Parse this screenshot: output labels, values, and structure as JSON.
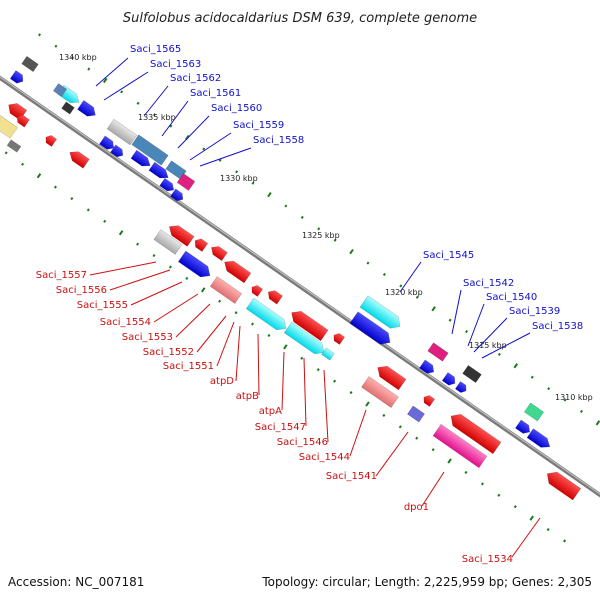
{
  "title": "Sulfolobus acidocaldarius DSM 639, complete genome",
  "footer": {
    "accession": "Accession: NC_007181",
    "summary": "Topology: circular; Length: 2,225,959 bp; Genes: 2,305"
  },
  "colors": {
    "forward_label": "#1010cc",
    "reverse_label": "#cc1010",
    "backbone": "#808080",
    "tick": "#1a7a1a"
  },
  "ticks": [
    "1340 kbp",
    "1335 kbp",
    "1330 kbp",
    "1325 kbp",
    "1320 kbp",
    "1315 kbp",
    "1310 kbp"
  ],
  "forward_labels": [
    "Saci_1565",
    "Saci_1563",
    "Saci_1562",
    "Saci_1561",
    "Saci_1560",
    "Saci_1559",
    "Saci_1558",
    "Saci_1545",
    "Saci_1542",
    "Saci_1540",
    "Saci_1539",
    "Saci_1538"
  ],
  "reverse_labels": [
    "Saci_1557",
    "Saci_1556",
    "Saci_1555",
    "Saci_1554",
    "Saci_1553",
    "Saci_1552",
    "Saci_1551",
    "atpD",
    "atpB",
    "atpA",
    "Saci_1547",
    "Saci_1546",
    "Saci_1544",
    "Saci_1541",
    "dpo1",
    "Saci_1534"
  ]
}
